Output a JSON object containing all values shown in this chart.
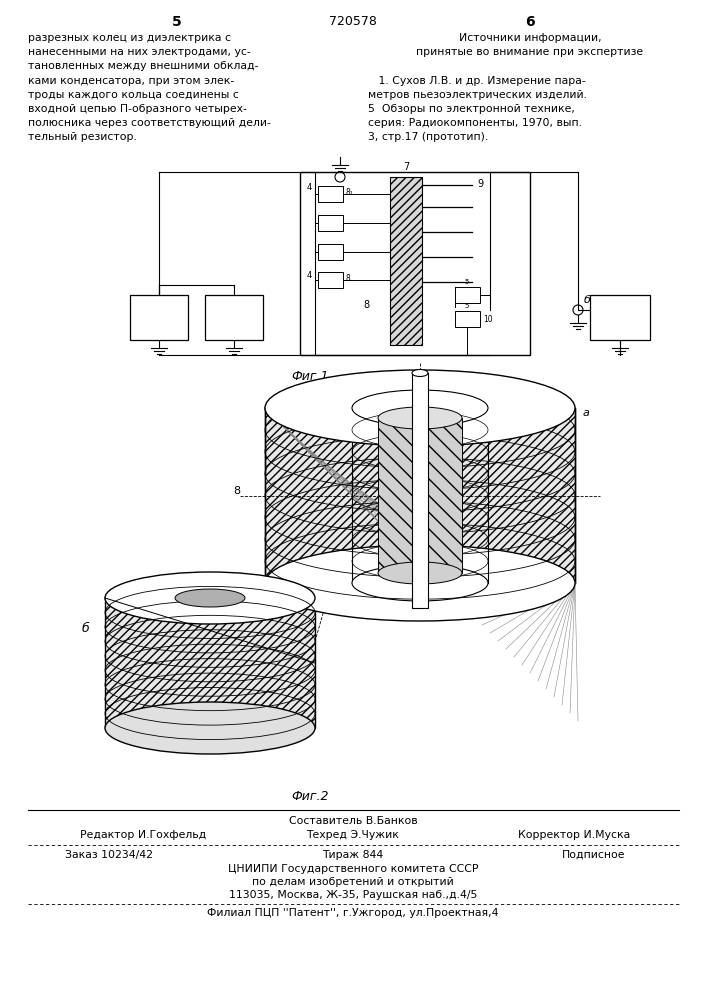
{
  "page_width": 7.07,
  "page_height": 10.0,
  "bg_color": "#ffffff",
  "header_page_num_left": "5",
  "header_patent_num": "720578",
  "header_page_num_right": "6",
  "left_text": [
    "разрезных колец из диэлектрика с",
    "нанесенными на них электродами, ус-",
    "тановленных между внешними обклад-",
    "ками конденсатора, при этом элек-",
    "троды каждого кольца соединены с",
    "входной цепью П-образного четырех-",
    "полюсника через соответствующий дели-",
    "тельный резистор."
  ],
  "right_header": "Источники информации,",
  "right_subheader": "принятые во внимание при экспертизе",
  "right_text_1": "   1. Сухов Л.В. и др. Измерение пара-",
  "right_text_2": "метров пьезоэлектрических изделий.",
  "right_text_3": "5  Обзоры по электронной технике,",
  "right_text_4": "серия: Радиокомпоненты, 1970, вып.",
  "right_text_5": "3, стр.17 (прототип).",
  "fig1_caption": "Фиг.1",
  "fig2_caption": "Фиг.2",
  "footer_line1": "Составитель В.Банков",
  "footer_line2_left": "Редактор И.Гохфельд",
  "footer_line2_mid": "Техред Э.Чужик",
  "footer_line2_right": "Корректор И.Муска",
  "footer_order": "Заказ 10234/42",
  "footer_tirazh": "Тираж 844",
  "footer_podp": "Подписное",
  "footer_org": "ЦНИИПИ Государственного комитета СССР",
  "footer_org2": "по делам изобретений и открытий",
  "footer_addr": "113035, Москва, Ж-35, Раушская наб.,д.4/5",
  "footer_branch": "Филиал ПЦП ''Патент'', г.Ужгород, ул.Проектная,4"
}
